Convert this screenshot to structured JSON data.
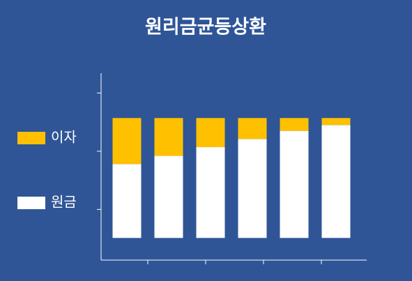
{
  "chart_data": {
    "type": "stacked_bar",
    "title": "원리금균등상환",
    "categories": [
      null,
      null,
      null,
      null,
      null,
      null
    ],
    "series": [
      {
        "name": "원금",
        "color": "#ffffff",
        "values": [
          127,
          141,
          156,
          170,
          184,
          194
        ]
      },
      {
        "name": "이자",
        "color": "#ffc000",
        "values": [
          79,
          65,
          50,
          36,
          22,
          12
        ]
      }
    ],
    "ylim": [
      -38,
      283
    ],
    "yticks": [
      49,
      149,
      249
    ],
    "legend": "left"
  }
}
